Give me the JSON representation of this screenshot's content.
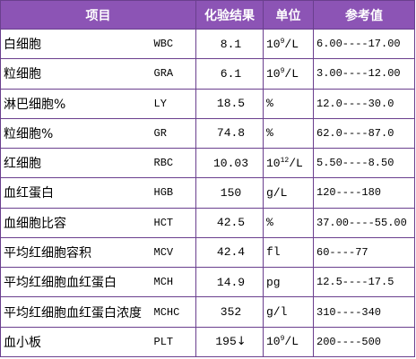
{
  "header": {
    "item": "项目",
    "result": "化验结果",
    "unit": "单位",
    "reference": "参考值"
  },
  "colors": {
    "header_bg": "#8c54b5",
    "border": "#6a3f8e",
    "header_text": "#ffffff"
  },
  "rows": [
    {
      "name": "白细胞",
      "code": "WBC",
      "result": "8.1",
      "flag": "",
      "unit_base": "10",
      "unit_exp": "9",
      "unit_suffix": "/L",
      "range": "6.00----17.00"
    },
    {
      "name": "粒细胞",
      "code": "GRA",
      "result": "6.1",
      "flag": "",
      "unit_base": "10",
      "unit_exp": "9",
      "unit_suffix": "/L",
      "range": "3.00----12.00"
    },
    {
      "name": "淋巴细胞%",
      "code": "LY",
      "result": "18.5",
      "flag": "",
      "unit_base": "%",
      "unit_exp": "",
      "unit_suffix": "",
      "range": "12.0----30.0"
    },
    {
      "name": "粒细胞%",
      "code": "GR",
      "result": "74.8",
      "flag": "",
      "unit_base": "%",
      "unit_exp": "",
      "unit_suffix": "",
      "range": "62.0----87.0"
    },
    {
      "name": "红细胞",
      "code": "RBC",
      "result": "10.03",
      "flag": "",
      "unit_base": "10",
      "unit_exp": "12",
      "unit_suffix": "/L",
      "range": "5.50----8.50"
    },
    {
      "name": "血红蛋白",
      "code": "HGB",
      "result": "150",
      "flag": "",
      "unit_base": "g/L",
      "unit_exp": "",
      "unit_suffix": "",
      "range": "120----180"
    },
    {
      "name": "血细胞比容",
      "code": "HCT",
      "result": "42.5",
      "flag": "",
      "unit_base": "%",
      "unit_exp": "",
      "unit_suffix": "",
      "range": "37.00----55.00"
    },
    {
      "name": "平均红细胞容积",
      "code": "MCV",
      "result": "42.4",
      "flag": "",
      "unit_base": "fl",
      "unit_exp": "",
      "unit_suffix": "",
      "range": "60----77"
    },
    {
      "name": "平均红细胞血红蛋白",
      "code": "MCH",
      "result": "14.9",
      "flag": "",
      "unit_base": "pg",
      "unit_exp": "",
      "unit_suffix": "",
      "range": "12.5----17.5"
    },
    {
      "name": "平均红细胞血红蛋白浓度",
      "code": "MCHC",
      "result": "352",
      "flag": "",
      "unit_base": "g/l",
      "unit_exp": "",
      "unit_suffix": "",
      "range": "310----340"
    },
    {
      "name": "血小板",
      "code": "PLT",
      "result": "195",
      "flag": "↓",
      "unit_base": "10",
      "unit_exp": "9",
      "unit_suffix": "/L",
      "range": "200----500"
    }
  ]
}
